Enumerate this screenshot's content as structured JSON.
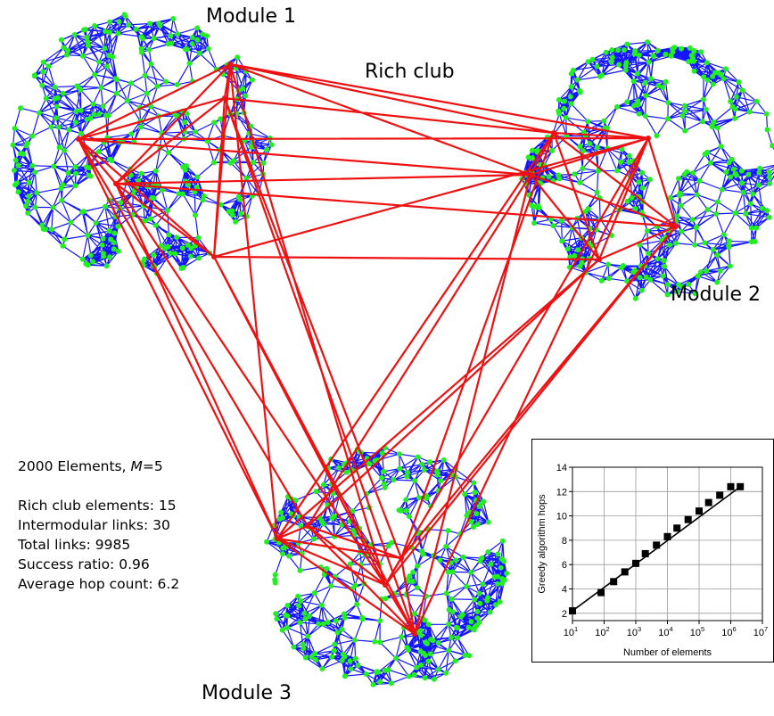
{
  "labels": {
    "module1": "Module 1",
    "module2": "Module 2",
    "module3": "Module 3",
    "rich_club": "Rich club"
  },
  "stats": {
    "elements_prefix": "2000 Elements, ",
    "m_symbol": "M",
    "m_value": "=5",
    "rich_club_elements": "Rich club elements: 15",
    "intermodular_links": "Intermodular links: 30",
    "total_links": "Total  links: 9985",
    "success_ratio": "Success ratio: 0.96",
    "average_hop_count": "Average hop count: 6.2"
  },
  "colors": {
    "intra_links": "#1414ff",
    "nodes": "#22ee22",
    "rich_club_links": "#ee1111",
    "inset_line": "#000000"
  },
  "chart_data": {
    "type": "scatter",
    "title": "",
    "xlabel": "Number of elements",
    "ylabel": "Greedy algorithm hops",
    "x_scale": "log",
    "xlim": [
      10,
      10000000
    ],
    "ylim": [
      1.4,
      14
    ],
    "x_tick_values": [
      10,
      100,
      1000,
      10000,
      100000,
      1000000,
      10000000
    ],
    "x_tick_exponents": [
      "1",
      "2",
      "3",
      "4",
      "5",
      "6",
      "7"
    ],
    "x_tick_base": "10",
    "y_ticks": [
      "2",
      "4",
      "6",
      "8",
      "10",
      "12",
      "14"
    ],
    "grid": true,
    "x": [
      10,
      80,
      200,
      450,
      1000,
      2000,
      4500,
      10000,
      20000,
      45000,
      100000,
      200000,
      450000,
      1000000,
      2000000
    ],
    "values": [
      2.2,
      3.7,
      4.6,
      5.4,
      6.1,
      6.9,
      7.6,
      8.3,
      9.0,
      9.7,
      10.4,
      11.1,
      11.7,
      12.4,
      12.4
    ],
    "series": [
      {
        "values": [
          2.2,
          3.7,
          4.6,
          5.4,
          6.1,
          6.9,
          7.6,
          8.3,
          9.0,
          9.7,
          10.4,
          11.1,
          11.7,
          12.4,
          12.4
        ]
      }
    ],
    "fit_line": true
  }
}
